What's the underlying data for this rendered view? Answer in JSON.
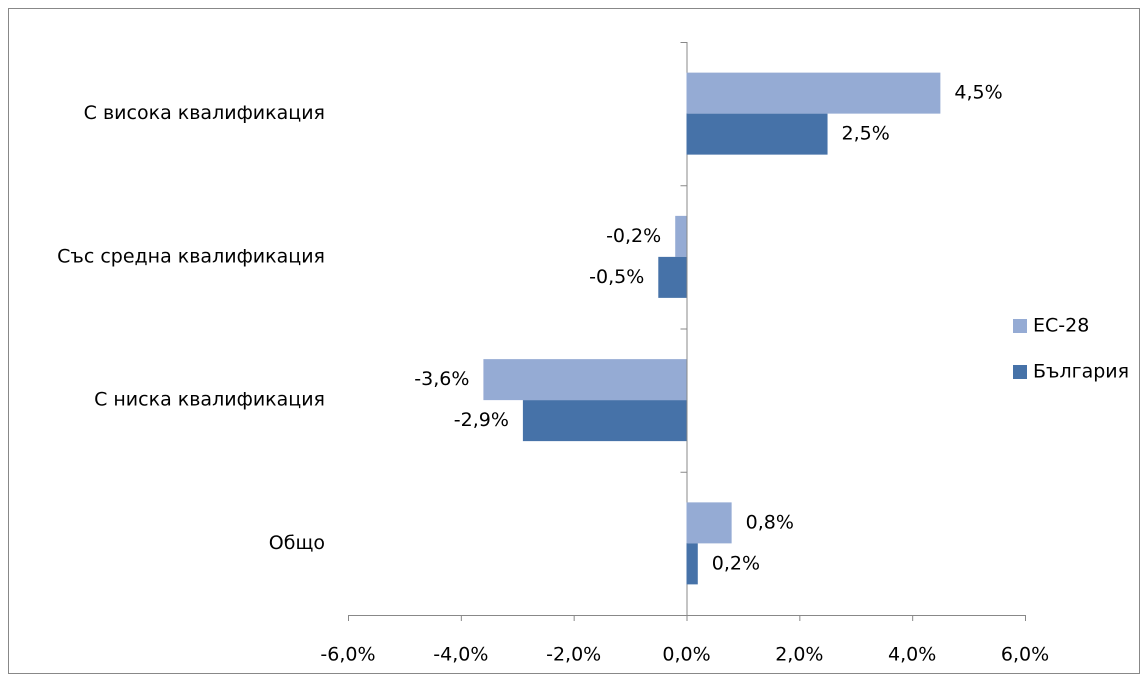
{
  "chart_data": {
    "type": "barh",
    "categories": [
      "С висока квалификация",
      "Със средна квалификация",
      "С ниска квалификация",
      "Общо"
    ],
    "series": [
      {
        "name": "ЕС-28",
        "color": "#95abd4",
        "values": [
          4.5,
          -0.2,
          -3.6,
          0.8
        ],
        "value_labels": [
          "4,5%",
          "-0,2%",
          "-3,6%",
          "0,8%"
        ]
      },
      {
        "name": "България",
        "color": "#4672a8",
        "values": [
          2.5,
          -0.5,
          -2.9,
          0.2
        ],
        "value_labels": [
          "2,5%",
          "-0,5%",
          "-2,9%",
          "0,2%"
        ]
      }
    ],
    "xlim": [
      -6,
      6
    ],
    "xticks": [
      {
        "value": -6,
        "label": "-6,0%"
      },
      {
        "value": -4,
        "label": "-4,0%"
      },
      {
        "value": -2,
        "label": "-2,0%"
      },
      {
        "value": 0,
        "label": "0,0%"
      },
      {
        "value": 2,
        "label": "2,0%"
      },
      {
        "value": 4,
        "label": "4,0%"
      },
      {
        "value": 6,
        "label": "6,0%"
      }
    ],
    "legend": "right"
  }
}
